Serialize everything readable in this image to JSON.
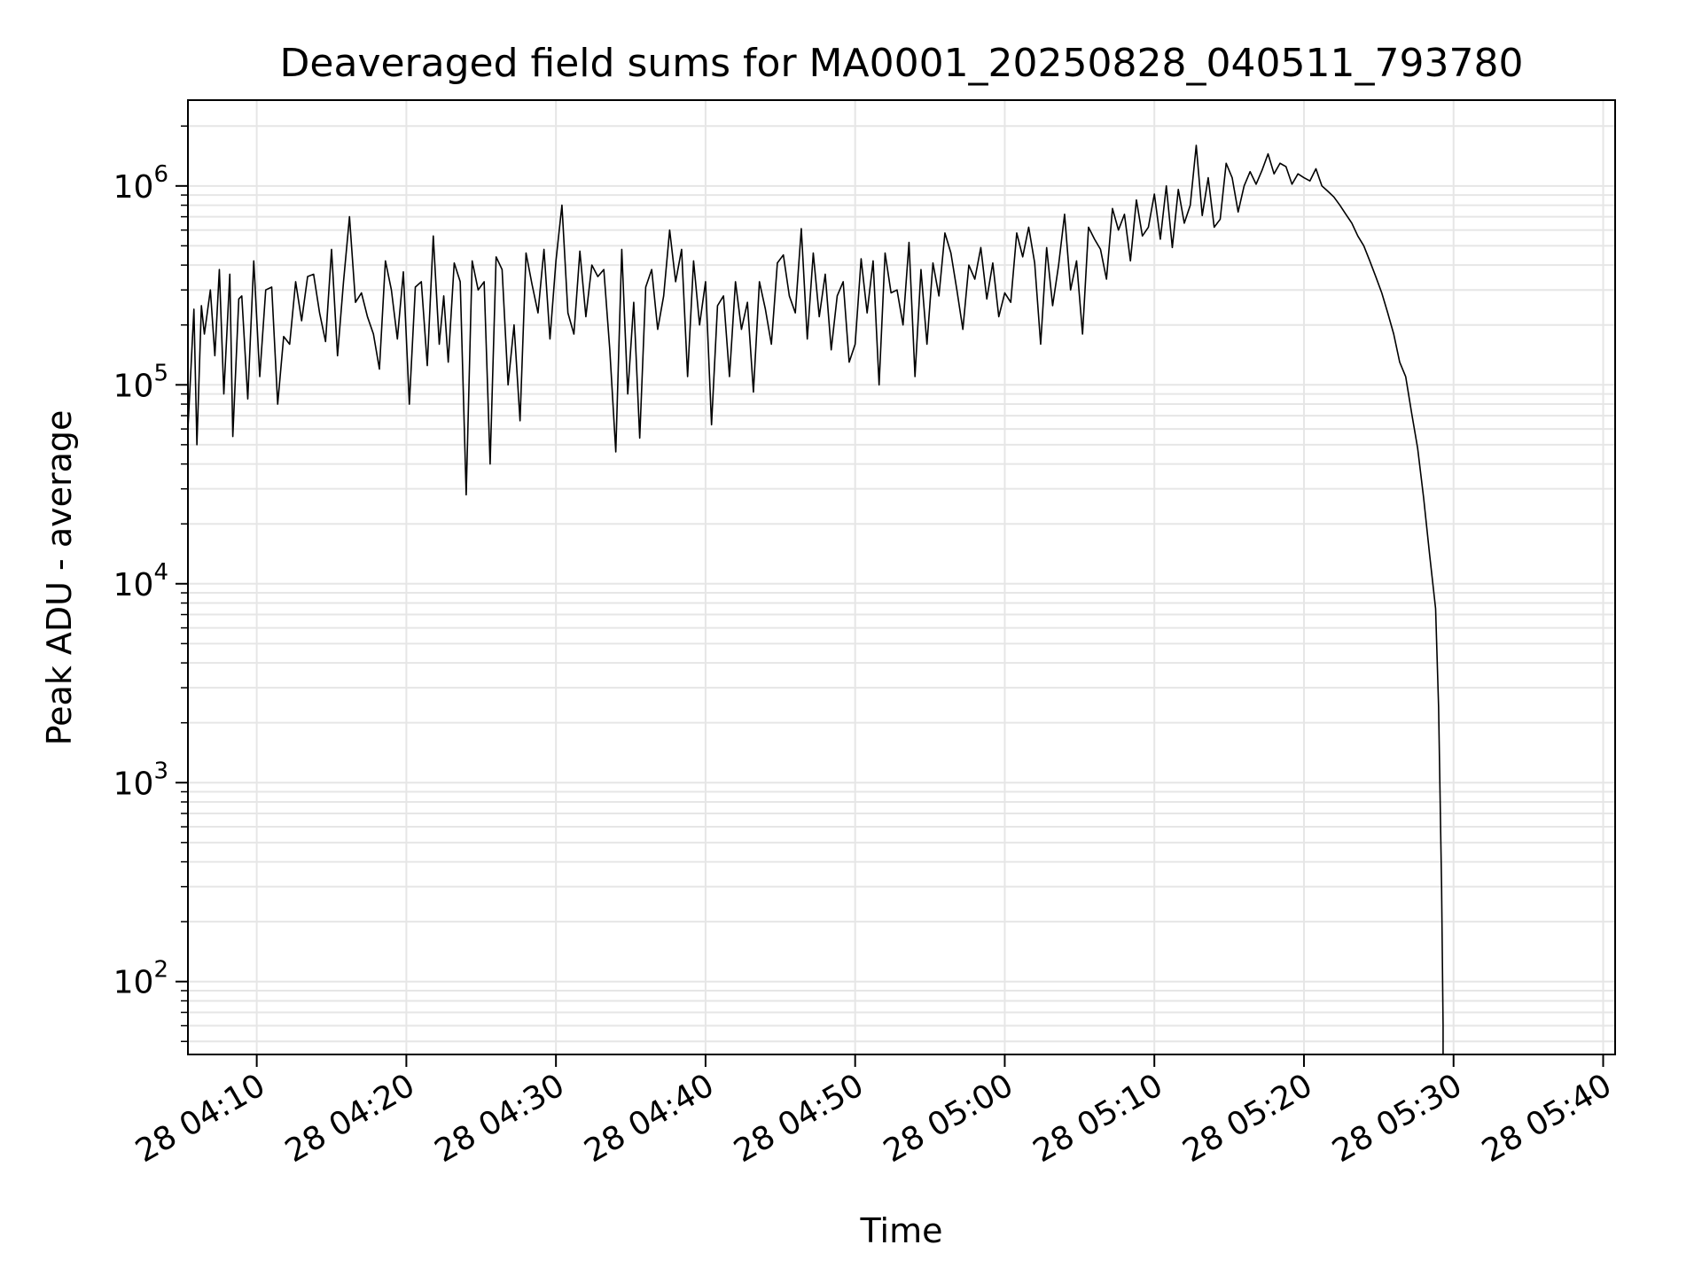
{
  "chart_data": {
    "type": "line",
    "title": "Deaveraged field sums for MA0001_20250828_040511_793780",
    "xlabel": "Time",
    "ylabel": "Peak ADU - average",
    "yscale": "log",
    "x_unit": "minutes after 04:00 on the 28th",
    "xlim": [
      "28 04:05:24",
      "28 05:40:48"
    ],
    "ylim": [
      43,
      2700000
    ],
    "x_ticks": [
      {
        "minute": 10,
        "label": "28 04:10"
      },
      {
        "minute": 20,
        "label": "28 04:20"
      },
      {
        "minute": 30,
        "label": "28 04:30"
      },
      {
        "minute": 40,
        "label": "28 04:40"
      },
      {
        "minute": 50,
        "label": "28 04:50"
      },
      {
        "minute": 60,
        "label": "28 05:00"
      },
      {
        "minute": 70,
        "label": "28 05:10"
      },
      {
        "minute": 80,
        "label": "28 05:20"
      },
      {
        "minute": 90,
        "label": "28 05:30"
      },
      {
        "minute": 100,
        "label": "28 05:40"
      }
    ],
    "y_ticks": [
      {
        "value": 100,
        "base": "10",
        "exp": "2"
      },
      {
        "value": 1000,
        "base": "10",
        "exp": "3"
      },
      {
        "value": 10000,
        "base": "10",
        "exp": "4"
      },
      {
        "value": 100000,
        "base": "10",
        "exp": "5"
      },
      {
        "value": 1000000,
        "base": "10",
        "exp": "6"
      }
    ],
    "grid": true,
    "line_color": "#000000",
    "grid_color": "#e6e6e6",
    "series": [
      {
        "x": [
          "28 04:05:24",
          "28 04:05:48",
          "28 04:06:00",
          "28 04:06:18",
          "28 04:06:30",
          "28 04:06:54",
          "28 04:07:12",
          "28 04:07:30",
          "28 04:07:48",
          "28 04:08:12",
          "28 04:08:24",
          "28 04:08:48",
          "28 04:09:00",
          "28 04:09:24",
          "28 04:09:48",
          "28 04:10:12",
          "28 04:10:36",
          "28 04:11:00",
          "28 04:11:24",
          "28 04:11:48",
          "28 04:12:12",
          "28 04:12:36",
          "28 04:13:00",
          "28 04:13:24",
          "28 04:13:48",
          "28 04:14:12",
          "28 04:14:36",
          "28 04:15:00",
          "28 04:15:24",
          "28 04:15:48",
          "28 04:16:12",
          "28 04:16:36",
          "28 04:17:00",
          "28 04:17:24",
          "28 04:17:48",
          "28 04:18:12",
          "28 04:18:36",
          "28 04:19:00",
          "28 04:19:24",
          "28 04:19:48",
          "28 04:20:12",
          "28 04:20:36",
          "28 04:21:00",
          "28 04:21:24",
          "28 04:21:48",
          "28 04:22:12",
          "28 04:22:30",
          "28 04:22:48",
          "28 04:23:12",
          "28 04:23:36",
          "28 04:24:00",
          "28 04:24:24",
          "28 04:24:48",
          "28 04:25:12",
          "28 04:25:36",
          "28 04:26:00",
          "28 04:26:24",
          "28 04:26:48",
          "28 04:27:12",
          "28 04:27:36",
          "28 04:28:00",
          "28 04:28:24",
          "28 04:28:48",
          "28 04:29:12",
          "28 04:29:36",
          "28 04:30:00",
          "28 04:30:24",
          "28 04:30:48",
          "28 04:31:12",
          "28 04:31:36",
          "28 04:32:00",
          "28 04:32:24",
          "28 04:32:48",
          "28 04:33:12",
          "28 04:33:36",
          "28 04:34:00",
          "28 04:34:24",
          "28 04:34:48",
          "28 04:35:12",
          "28 04:35:36",
          "28 04:36:00",
          "28 04:36:24",
          "28 04:36:48",
          "28 04:37:12",
          "28 04:37:36",
          "28 04:38:00",
          "28 04:38:24",
          "28 04:38:48",
          "28 04:39:12",
          "28 04:39:36",
          "28 04:40:00",
          "28 04:40:24",
          "28 04:40:48",
          "28 04:41:12",
          "28 04:41:36",
          "28 04:42:00",
          "28 04:42:24",
          "28 04:42:48",
          "28 04:43:12",
          "28 04:43:36",
          "28 04:44:00",
          "28 04:44:24",
          "28 04:44:48",
          "28 04:45:12",
          "28 04:45:36",
          "28 04:46:00",
          "28 04:46:24",
          "28 04:46:48",
          "28 04:47:12",
          "28 04:47:36",
          "28 04:48:00",
          "28 04:48:24",
          "28 04:48:48",
          "28 04:49:12",
          "28 04:49:36",
          "28 04:50:00",
          "28 04:50:24",
          "28 04:50:48",
          "28 04:51:12",
          "28 04:51:36",
          "28 04:52:00",
          "28 04:52:24",
          "28 04:52:48",
          "28 04:53:12",
          "28 04:53:36",
          "28 04:54:00",
          "28 04:54:24",
          "28 04:54:48",
          "28 04:55:12",
          "28 04:55:36",
          "28 04:56:00",
          "28 04:56:24",
          "28 04:56:48",
          "28 04:57:12",
          "28 04:57:36",
          "28 04:58:00",
          "28 04:58:24",
          "28 04:58:48",
          "28 04:59:12",
          "28 04:59:36",
          "28 05:00:00",
          "28 05:00:24",
          "28 05:00:48",
          "28 05:01:12",
          "28 05:01:36",
          "28 05:02:00",
          "28 05:02:24",
          "28 05:02:48",
          "28 05:03:12",
          "28 05:03:36",
          "28 05:04:00",
          "28 05:04:24",
          "28 05:04:48",
          "28 05:05:12",
          "28 05:05:36",
          "28 05:06:00",
          "28 05:06:24",
          "28 05:06:48",
          "28 05:07:12",
          "28 05:07:36",
          "28 05:08:00",
          "28 05:08:24",
          "28 05:08:48",
          "28 05:09:12",
          "28 05:09:36",
          "28 05:10:00",
          "28 05:10:24",
          "28 05:10:48",
          "28 05:11:12",
          "28 05:11:36",
          "28 05:12:00",
          "28 05:12:24",
          "28 05:12:48",
          "28 05:13:12",
          "28 05:13:36",
          "28 05:14:00",
          "28 05:14:24",
          "28 05:14:48",
          "28 05:15:12",
          "28 05:15:36",
          "28 05:16:00",
          "28 05:16:24",
          "28 05:16:48",
          "28 05:17:12",
          "28 05:17:36",
          "28 05:18:00",
          "28 05:18:24",
          "28 05:18:48",
          "28 05:19:12",
          "28 05:19:36",
          "28 05:20:00",
          "28 05:20:24",
          "28 05:20:48",
          "28 05:21:12",
          "28 05:21:36",
          "28 05:22:00",
          "28 05:22:24",
          "28 05:22:48",
          "28 05:23:12",
          "28 05:23:36",
          "28 05:24:00",
          "28 05:24:24",
          "28 05:24:48",
          "28 05:25:12",
          "28 05:25:36",
          "28 05:26:00",
          "28 05:26:24",
          "28 05:26:48",
          "28 05:27:12",
          "28 05:27:36",
          "28 05:28:00",
          "28 05:28:24",
          "28 05:28:48",
          "28 05:29:00",
          "28 05:29:12",
          "28 05:29:18"
        ],
        "y": [
          60000,
          240000,
          50000,
          250000,
          180000,
          300000,
          140000,
          380000,
          90000,
          360000,
          55000,
          270000,
          280000,
          85000,
          420000,
          110000,
          300000,
          310000,
          80000,
          175000,
          160000,
          330000,
          210000,
          350000,
          360000,
          230000,
          165000,
          480000,
          140000,
          330000,
          700000,
          260000,
          290000,
          220000,
          180000,
          120000,
          420000,
          300000,
          170000,
          370000,
          80000,
          310000,
          330000,
          125000,
          560000,
          160000,
          280000,
          130000,
          410000,
          330000,
          28000,
          420000,
          300000,
          330000,
          40000,
          440000,
          380000,
          100000,
          200000,
          66000,
          460000,
          320000,
          230000,
          480000,
          170000,
          420000,
          800000,
          230000,
          180000,
          470000,
          220000,
          400000,
          350000,
          380000,
          150000,
          46000,
          480000,
          90000,
          260000,
          54000,
          310000,
          380000,
          190000,
          280000,
          600000,
          330000,
          480000,
          110000,
          420000,
          200000,
          330000,
          63000,
          250000,
          280000,
          110000,
          330000,
          190000,
          260000,
          92000,
          330000,
          240000,
          160000,
          410000,
          450000,
          280000,
          230000,
          610000,
          170000,
          460000,
          220000,
          360000,
          150000,
          280000,
          330000,
          130000,
          160000,
          430000,
          230000,
          420000,
          100000,
          460000,
          290000,
          300000,
          200000,
          520000,
          110000,
          380000,
          160000,
          410000,
          280000,
          580000,
          460000,
          300000,
          190000,
          400000,
          340000,
          490000,
          270000,
          410000,
          220000,
          290000,
          260000,
          580000,
          440000,
          620000,
          410000,
          160000,
          490000,
          250000,
          400000,
          720000,
          300000,
          420000,
          180000,
          620000,
          540000,
          480000,
          340000,
          770000,
          600000,
          720000,
          420000,
          850000,
          560000,
          620000,
          910000,
          540000,
          1000000,
          490000,
          960000,
          650000,
          800000,
          1600000,
          710000,
          1100000,
          620000,
          680000,
          1300000,
          1100000,
          740000,
          1000000,
          1180000,
          1020000,
          1200000,
          1450000,
          1150000,
          1300000,
          1250000,
          1020000,
          1150000,
          1100000,
          1060000,
          1220000,
          1000000,
          940000,
          880000,
          800000,
          720000,
          650000,
          560000,
          500000,
          420000,
          350000,
          290000,
          230000,
          180000,
          130000,
          110000,
          72000,
          48000,
          27000,
          14000,
          7500,
          2400,
          300,
          60
        ]
      }
    ]
  }
}
